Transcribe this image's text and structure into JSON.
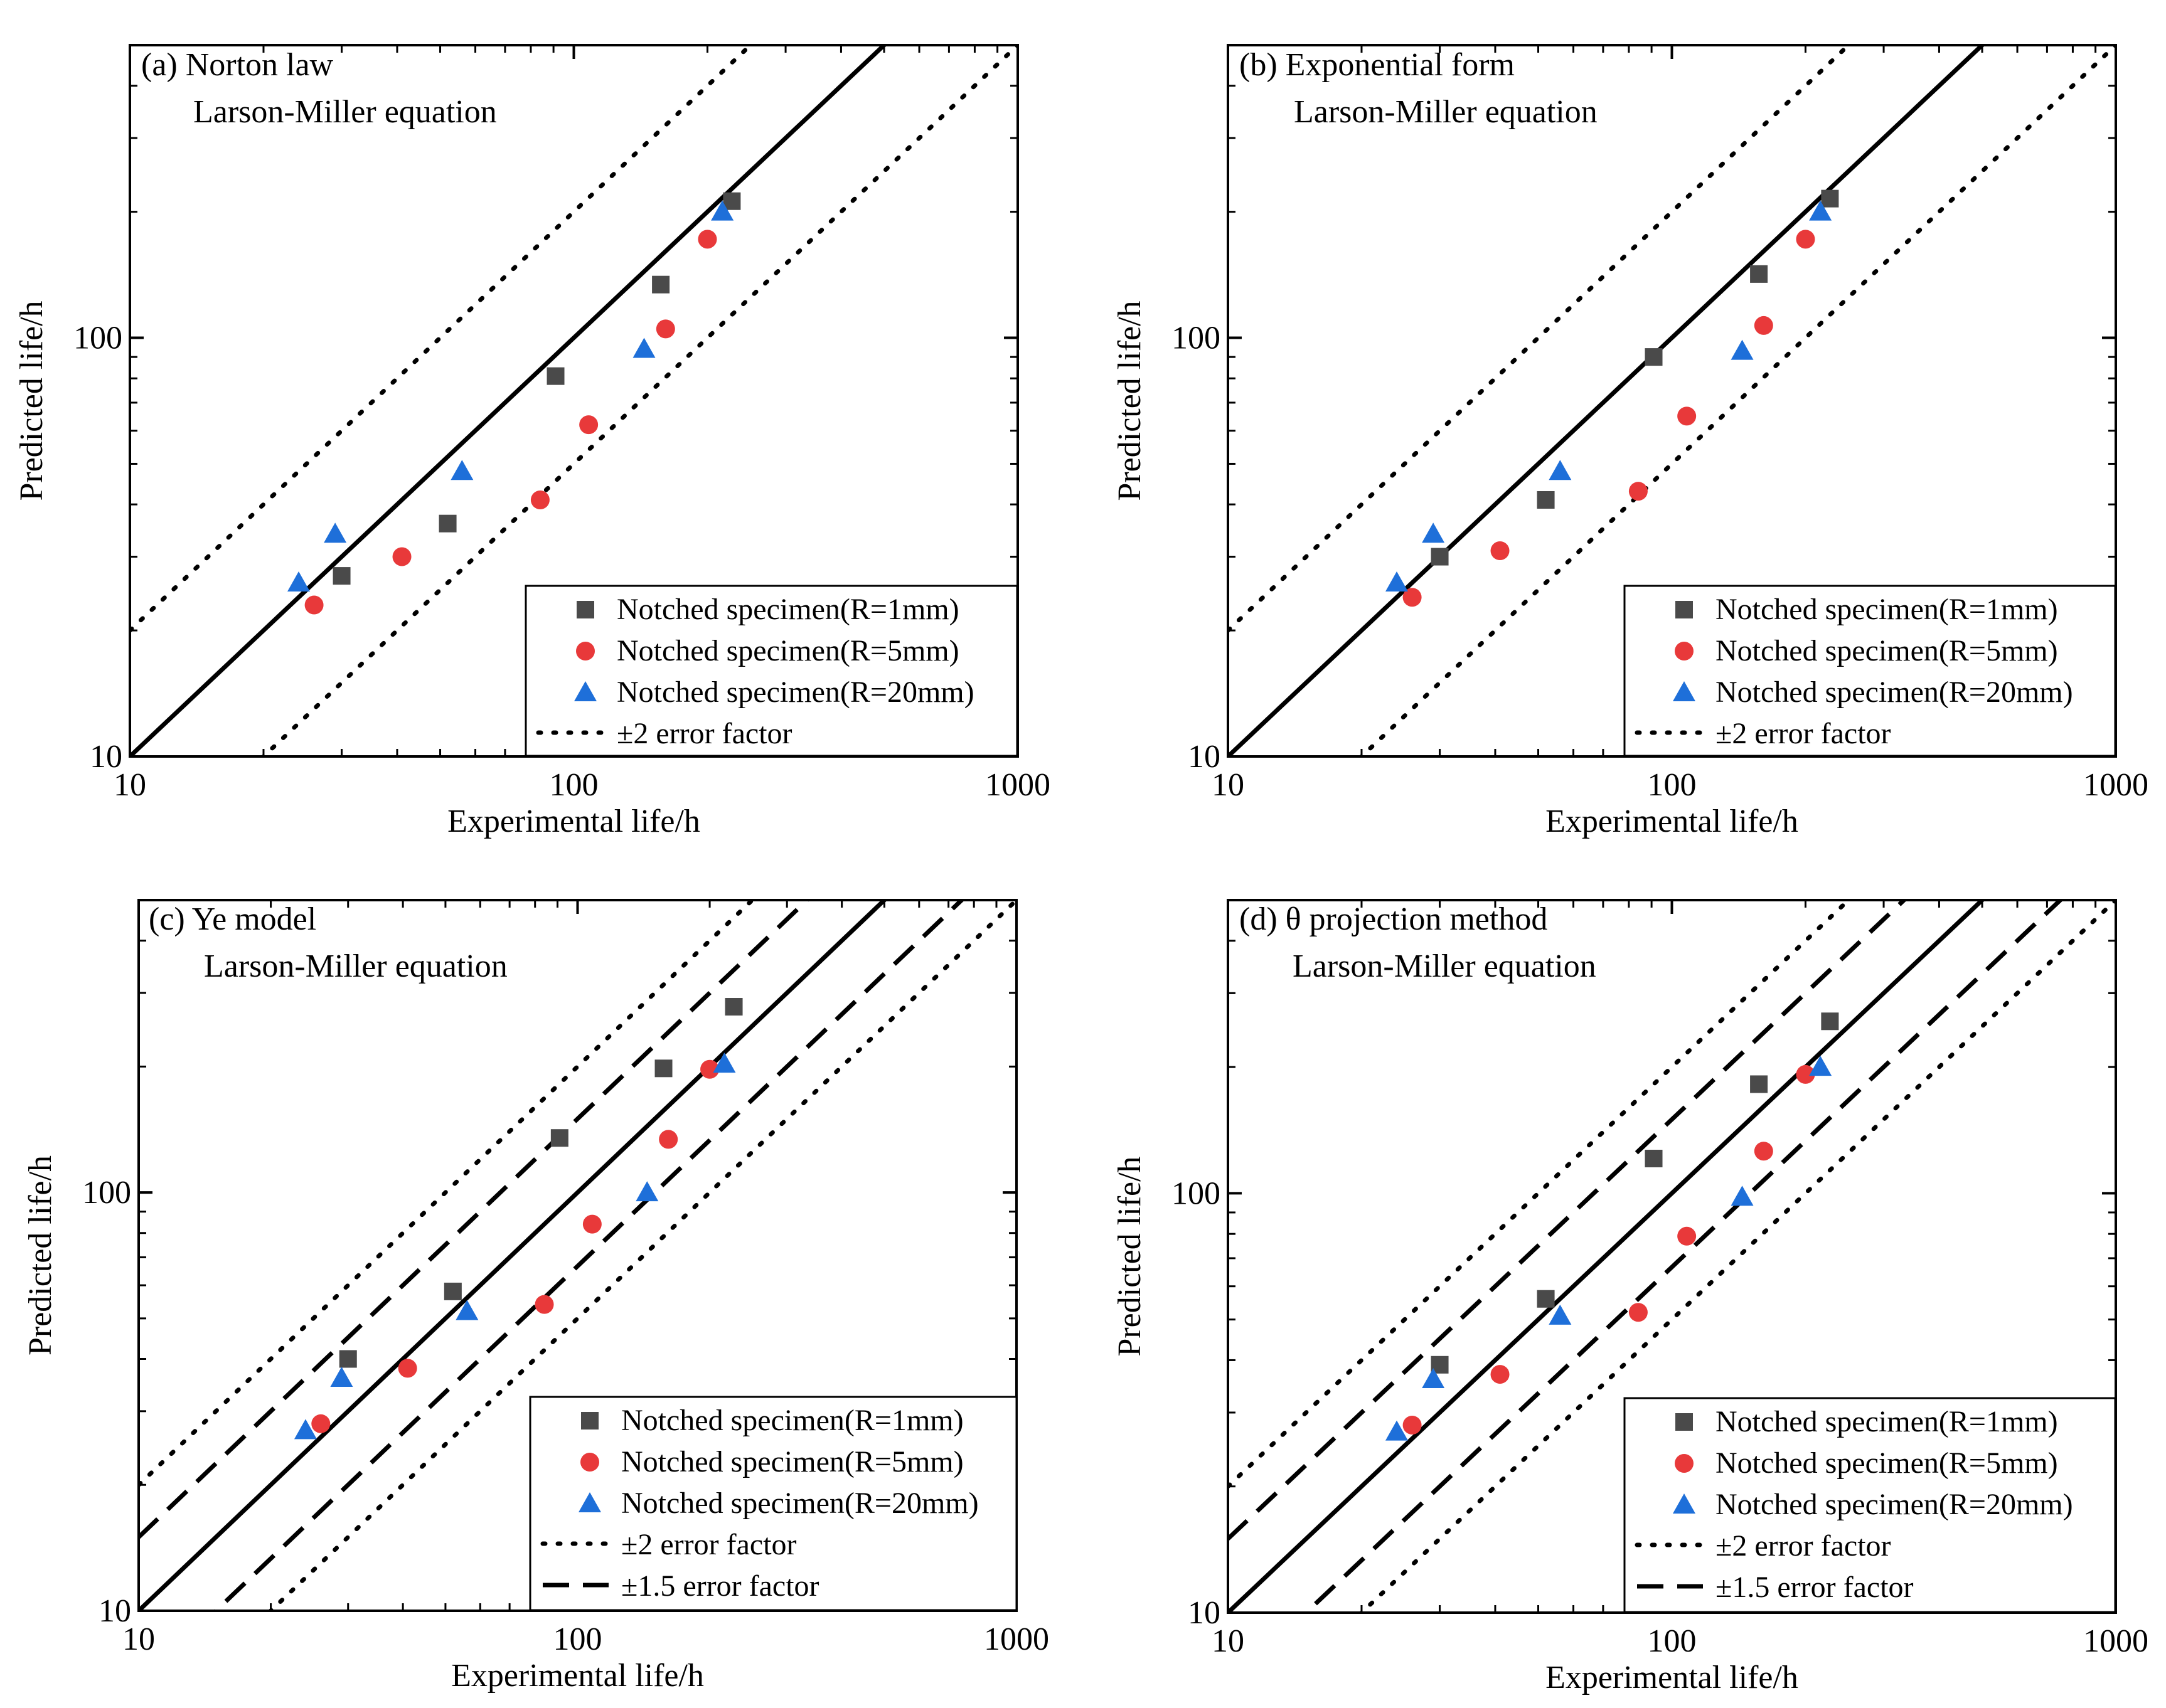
{
  "colors": {
    "r1": "#4a4a4a",
    "r5": "#e8393a",
    "r20": "#1e6fd9",
    "line": "#000000"
  },
  "chart_data": [
    {
      "type": "scatter",
      "panel_label": "(a) Norton law",
      "subtitle": "Larson-Miller equation",
      "xlabel": "Experimental life/h",
      "ylabel": "Predicted life/h",
      "xscale": "log",
      "yscale": "log",
      "xlim": [
        10,
        1000
      ],
      "ylim": [
        10,
        500
      ],
      "xticks": [
        10,
        100,
        1000
      ],
      "yticks": [
        10,
        100
      ],
      "xtick_labels": [
        "10",
        "100",
        "1000"
      ],
      "ytick_labels": [
        "10",
        "100"
      ],
      "legend_position": "bottom-right",
      "series": [
        {
          "name": "Notched specimen(R=1mm)",
          "marker": "square",
          "color_key": "r1",
          "x": [
            30,
            52,
            91,
            157,
            227
          ],
          "y": [
            27,
            36,
            81,
            134,
            212
          ]
        },
        {
          "name": "Notched specimen(R=5mm)",
          "marker": "circle",
          "color_key": "r5",
          "x": [
            26,
            41,
            84,
            108,
            161,
            200
          ],
          "y": [
            23,
            30,
            41,
            62,
            105,
            172
          ]
        },
        {
          "name": "Notched specimen(R=20mm)",
          "marker": "triangle",
          "color_key": "r20",
          "x": [
            24,
            29,
            56,
            144,
            216
          ],
          "y": [
            26,
            34,
            48,
            94,
            200
          ]
        }
      ],
      "reference_lines": [
        {
          "name": "±2 error factor",
          "style": "dotted",
          "factors": [
            2,
            0.5
          ]
        },
        {
          "name": "1:1 line",
          "style": "solid",
          "factors": [
            1
          ],
          "in_legend": false
        }
      ]
    },
    {
      "type": "scatter",
      "panel_label": "(b) Exponential form",
      "subtitle": "Larson-Miller equation",
      "xlabel": "Experimental life/h",
      "ylabel": "Predicted life/h",
      "xscale": "log",
      "yscale": "log",
      "xlim": [
        10,
        1000
      ],
      "ylim": [
        10,
        500
      ],
      "xticks": [
        10,
        100,
        1000
      ],
      "yticks": [
        10,
        100
      ],
      "xtick_labels": [
        "10",
        "100",
        "1000"
      ],
      "ytick_labels": [
        "10",
        "100"
      ],
      "legend_position": "bottom-right",
      "series": [
        {
          "name": "Notched specimen(R=1mm)",
          "marker": "square",
          "color_key": "r1",
          "x": [
            30,
            52,
            91,
            157,
            227
          ],
          "y": [
            30,
            41,
            90,
            142,
            215
          ]
        },
        {
          "name": "Notched specimen(R=5mm)",
          "marker": "circle",
          "color_key": "r5",
          "x": [
            26,
            41,
            84,
            108,
            161,
            200
          ],
          "y": [
            24,
            31,
            43,
            65,
            107,
            172
          ]
        },
        {
          "name": "Notched specimen(R=20mm)",
          "marker": "triangle",
          "color_key": "r20",
          "x": [
            24,
            29,
            56,
            144,
            216
          ],
          "y": [
            26,
            34,
            48,
            93,
            200
          ]
        }
      ],
      "reference_lines": [
        {
          "name": "±2 error factor",
          "style": "dotted",
          "factors": [
            2,
            0.5
          ]
        },
        {
          "name": "1:1 line",
          "style": "solid",
          "factors": [
            1
          ],
          "in_legend": false
        }
      ]
    },
    {
      "type": "scatter",
      "panel_label": "(c) Ye model",
      "subtitle": "Larson-Miller equation",
      "xlabel": "Experimental life/h",
      "ylabel": "Predicted life/h",
      "xscale": "log",
      "yscale": "log",
      "xlim": [
        10,
        1000
      ],
      "ylim": [
        10,
        500
      ],
      "xticks": [
        10,
        100,
        1000
      ],
      "yticks": [
        10,
        100
      ],
      "xtick_labels": [
        "10",
        "100",
        "1000"
      ],
      "ytick_labels": [
        "10",
        "100"
      ],
      "legend_position": "bottom-right",
      "series": [
        {
          "name": "Notched specimen(R=1mm)",
          "marker": "square",
          "color_key": "r1",
          "x": [
            30,
            52,
            91,
            157,
            227
          ],
          "y": [
            40,
            58,
            135,
            198,
            278
          ]
        },
        {
          "name": "Notched specimen(R=5mm)",
          "marker": "circle",
          "color_key": "r5",
          "x": [
            26,
            41,
            84,
            108,
            161,
            200
          ],
          "y": [
            28,
            38,
            54,
            84,
            134,
            197
          ]
        },
        {
          "name": "Notched specimen(R=20mm)",
          "marker": "triangle",
          "color_key": "r20",
          "x": [
            24,
            29,
            56,
            144,
            216
          ],
          "y": [
            27,
            36,
            52,
            100,
            203
          ]
        }
      ],
      "reference_lines": [
        {
          "name": "±2 error factor",
          "style": "dotted",
          "factors": [
            2,
            0.5
          ]
        },
        {
          "name": "±1.5 error factor",
          "style": "dashed",
          "factors": [
            1.5,
            0.6667
          ]
        },
        {
          "name": "1:1 line",
          "style": "solid",
          "factors": [
            1
          ],
          "in_legend": false
        }
      ]
    },
    {
      "type": "scatter",
      "panel_label": "(d) θ projection method",
      "subtitle": "Larson-Miller equation",
      "xlabel": "Experimental life/h",
      "ylabel": "Predicted life/h",
      "xscale": "log",
      "yscale": "log",
      "xlim": [
        10,
        1000
      ],
      "ylim": [
        10,
        500
      ],
      "xticks": [
        10,
        100,
        1000
      ],
      "yticks": [
        10,
        100
      ],
      "xtick_labels": [
        "10",
        "100",
        "1000"
      ],
      "ytick_labels": [
        "10",
        "100"
      ],
      "legend_position": "bottom-right",
      "series": [
        {
          "name": "Notched specimen(R=1mm)",
          "marker": "square",
          "color_key": "r1",
          "x": [
            30,
            52,
            91,
            157,
            227
          ],
          "y": [
            39,
            56,
            121,
            182,
            257
          ]
        },
        {
          "name": "Notched specimen(R=5mm)",
          "marker": "circle",
          "color_key": "r5",
          "x": [
            26,
            41,
            84,
            108,
            161,
            200
          ],
          "y": [
            28,
            37,
            52,
            79,
            126,
            192
          ]
        },
        {
          "name": "Notched specimen(R=20mm)",
          "marker": "triangle",
          "color_key": "r20",
          "x": [
            24,
            29,
            56,
            144,
            216
          ],
          "y": [
            27,
            36,
            51,
            98,
            200
          ]
        }
      ],
      "reference_lines": [
        {
          "name": "±2 error factor",
          "style": "dotted",
          "factors": [
            2,
            0.5
          ]
        },
        {
          "name": "±1.5 error factor",
          "style": "dashed",
          "factors": [
            1.5,
            0.6667
          ]
        },
        {
          "name": "1:1 line",
          "style": "solid",
          "factors": [
            1
          ],
          "in_legend": false
        }
      ]
    }
  ]
}
